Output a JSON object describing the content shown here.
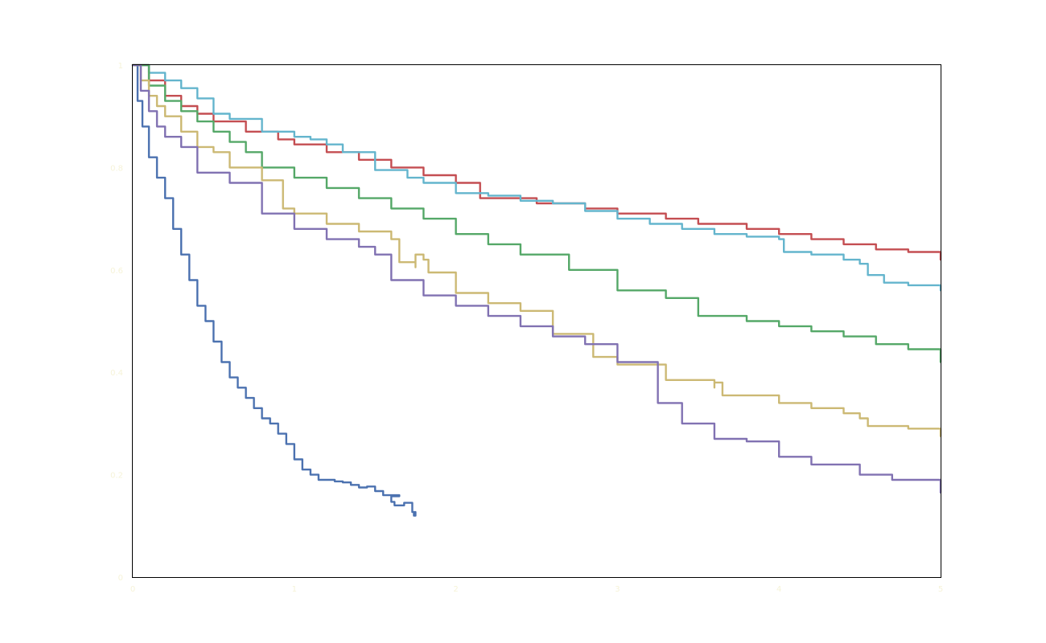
{
  "chart_data": {
    "type": "line",
    "title": "",
    "xlabel": "",
    "ylabel": "",
    "xlim": [
      0,
      5
    ],
    "ylim": [
      0,
      1
    ],
    "x_ticks": [
      "0",
      "1",
      "2",
      "3",
      "4",
      "5"
    ],
    "y_ticks": [
      "0",
      "0.2",
      "0.4",
      "0.6",
      "0.8",
      "1"
    ],
    "grid": false,
    "legend": "none",
    "series": [
      {
        "color": "#4c72b0",
        "points": [
          [
            0,
            1.0
          ],
          [
            0.03,
            0.93
          ],
          [
            0.06,
            0.88
          ],
          [
            0.1,
            0.82
          ],
          [
            0.15,
            0.78
          ],
          [
            0.2,
            0.74
          ],
          [
            0.25,
            0.68
          ],
          [
            0.3,
            0.63
          ],
          [
            0.35,
            0.58
          ],
          [
            0.4,
            0.53
          ],
          [
            0.45,
            0.5
          ],
          [
            0.5,
            0.46
          ],
          [
            0.55,
            0.42
          ],
          [
            0.6,
            0.39
          ],
          [
            0.65,
            0.37
          ],
          [
            0.7,
            0.35
          ],
          [
            0.75,
            0.33
          ],
          [
            0.8,
            0.31
          ],
          [
            0.85,
            0.3
          ],
          [
            0.9,
            0.28
          ],
          [
            0.95,
            0.26
          ],
          [
            1.0,
            0.23
          ],
          [
            1.05,
            0.21
          ],
          [
            1.1,
            0.2
          ],
          [
            1.15,
            0.19
          ],
          [
            1.2,
            0.19
          ],
          [
            1.25,
            0.187
          ],
          [
            1.3,
            0.185
          ],
          [
            1.35,
            0.18
          ],
          [
            1.4,
            0.175
          ],
          [
            1.45,
            0.177
          ],
          [
            1.5,
            0.168
          ],
          [
            1.55,
            0.16
          ],
          [
            1.6,
            0.158
          ],
          [
            1.65,
            0.16
          ],
          [
            1.6,
            0.147
          ],
          [
            1.62,
            0.14
          ],
          [
            1.68,
            0.145
          ],
          [
            1.73,
            0.127
          ],
          [
            1.75,
            0.12
          ],
          [
            1.74,
            0.124
          ]
        ]
      },
      {
        "color": "#c44e52",
        "points": [
          [
            0,
            1.0
          ],
          [
            0.1,
            0.97
          ],
          [
            0.2,
            0.94
          ],
          [
            0.3,
            0.92
          ],
          [
            0.4,
            0.905
          ],
          [
            0.5,
            0.89
          ],
          [
            0.7,
            0.87
          ],
          [
            0.9,
            0.855
          ],
          [
            1.0,
            0.845
          ],
          [
            1.2,
            0.83
          ],
          [
            1.4,
            0.815
          ],
          [
            1.6,
            0.8
          ],
          [
            1.8,
            0.785
          ],
          [
            2.0,
            0.77
          ],
          [
            2.15,
            0.76
          ],
          [
            2.15,
            0.74
          ],
          [
            2.5,
            0.73
          ],
          [
            2.8,
            0.72
          ],
          [
            3.0,
            0.71
          ],
          [
            3.3,
            0.7
          ],
          [
            3.5,
            0.69
          ],
          [
            3.8,
            0.68
          ],
          [
            4.0,
            0.67
          ],
          [
            4.2,
            0.66
          ],
          [
            4.4,
            0.65
          ],
          [
            4.6,
            0.64
          ],
          [
            4.8,
            0.635
          ],
          [
            5.0,
            0.62
          ]
        ]
      },
      {
        "color": "#64b5cd",
        "points": [
          [
            0,
            1.0
          ],
          [
            0.1,
            0.985
          ],
          [
            0.2,
            0.97
          ],
          [
            0.3,
            0.955
          ],
          [
            0.4,
            0.935
          ],
          [
            0.5,
            0.905
          ],
          [
            0.6,
            0.895
          ],
          [
            0.8,
            0.87
          ],
          [
            1.0,
            0.86
          ],
          [
            1.1,
            0.855
          ],
          [
            1.2,
            0.845
          ],
          [
            1.3,
            0.83
          ],
          [
            1.5,
            0.795
          ],
          [
            1.7,
            0.78
          ],
          [
            1.8,
            0.77
          ],
          [
            2.0,
            0.75
          ],
          [
            2.2,
            0.745
          ],
          [
            2.4,
            0.735
          ],
          [
            2.6,
            0.73
          ],
          [
            2.8,
            0.715
          ],
          [
            3.0,
            0.7
          ],
          [
            3.2,
            0.69
          ],
          [
            3.4,
            0.68
          ],
          [
            3.6,
            0.67
          ],
          [
            3.8,
            0.665
          ],
          [
            4.0,
            0.66
          ],
          [
            4.03,
            0.635
          ],
          [
            4.2,
            0.63
          ],
          [
            4.4,
            0.62
          ],
          [
            4.5,
            0.612
          ],
          [
            4.55,
            0.59
          ],
          [
            4.65,
            0.575
          ],
          [
            4.8,
            0.57
          ],
          [
            5.0,
            0.56
          ]
        ]
      },
      {
        "color": "#55a868",
        "points": [
          [
            0,
            1.0
          ],
          [
            0.1,
            0.96
          ],
          [
            0.2,
            0.93
          ],
          [
            0.3,
            0.91
          ],
          [
            0.4,
            0.89
          ],
          [
            0.5,
            0.87
          ],
          [
            0.6,
            0.85
          ],
          [
            0.7,
            0.83
          ],
          [
            0.8,
            0.8
          ],
          [
            1.0,
            0.78
          ],
          [
            1.2,
            0.76
          ],
          [
            1.4,
            0.74
          ],
          [
            1.6,
            0.72
          ],
          [
            1.8,
            0.7
          ],
          [
            2.0,
            0.67
          ],
          [
            2.2,
            0.65
          ],
          [
            2.4,
            0.63
          ],
          [
            2.7,
            0.61
          ],
          [
            2.7,
            0.6
          ],
          [
            3.0,
            0.58
          ],
          [
            3.0,
            0.56
          ],
          [
            3.3,
            0.545
          ],
          [
            3.5,
            0.53
          ],
          [
            3.5,
            0.51
          ],
          [
            3.8,
            0.5
          ],
          [
            4.0,
            0.49
          ],
          [
            4.2,
            0.48
          ],
          [
            4.4,
            0.47
          ],
          [
            4.6,
            0.455
          ],
          [
            4.8,
            0.445
          ],
          [
            5.0,
            0.42
          ]
        ]
      },
      {
        "color": "#ccb974",
        "points": [
          [
            0,
            1.0
          ],
          [
            0.05,
            0.97
          ],
          [
            0.1,
            0.94
          ],
          [
            0.15,
            0.92
          ],
          [
            0.2,
            0.9
          ],
          [
            0.3,
            0.87
          ],
          [
            0.4,
            0.84
          ],
          [
            0.5,
            0.83
          ],
          [
            0.6,
            0.8
          ],
          [
            0.8,
            0.775
          ],
          [
            0.93,
            0.755
          ],
          [
            0.93,
            0.72
          ],
          [
            1.0,
            0.71
          ],
          [
            1.2,
            0.69
          ],
          [
            1.4,
            0.675
          ],
          [
            1.6,
            0.66
          ],
          [
            1.65,
            0.65
          ],
          [
            1.65,
            0.615
          ],
          [
            1.75,
            0.605
          ],
          [
            1.75,
            0.63
          ],
          [
            1.8,
            0.62
          ],
          [
            1.83,
            0.595
          ],
          [
            2.0,
            0.58
          ],
          [
            2.0,
            0.555
          ],
          [
            2.2,
            0.535
          ],
          [
            2.4,
            0.52
          ],
          [
            2.6,
            0.505
          ],
          [
            2.6,
            0.475
          ],
          [
            2.85,
            0.46
          ],
          [
            2.85,
            0.43
          ],
          [
            3.0,
            0.415
          ],
          [
            3.3,
            0.405
          ],
          [
            3.3,
            0.385
          ],
          [
            3.6,
            0.37
          ],
          [
            3.6,
            0.38
          ],
          [
            3.65,
            0.37
          ],
          [
            3.65,
            0.355
          ],
          [
            4.0,
            0.34
          ],
          [
            4.2,
            0.33
          ],
          [
            4.4,
            0.32
          ],
          [
            4.5,
            0.31
          ],
          [
            4.55,
            0.295
          ],
          [
            4.8,
            0.29
          ],
          [
            5.0,
            0.275
          ]
        ]
      },
      {
        "color": "#8172b2",
        "points": [
          [
            0,
            1.0
          ],
          [
            0.05,
            0.95
          ],
          [
            0.1,
            0.91
          ],
          [
            0.15,
            0.88
          ],
          [
            0.2,
            0.86
          ],
          [
            0.3,
            0.84
          ],
          [
            0.4,
            0.79
          ],
          [
            0.6,
            0.77
          ],
          [
            0.8,
            0.71
          ],
          [
            1.0,
            0.68
          ],
          [
            1.2,
            0.66
          ],
          [
            1.4,
            0.645
          ],
          [
            1.5,
            0.63
          ],
          [
            1.6,
            0.62
          ],
          [
            1.6,
            0.58
          ],
          [
            1.8,
            0.55
          ],
          [
            2.0,
            0.53
          ],
          [
            2.2,
            0.51
          ],
          [
            2.4,
            0.49
          ],
          [
            2.6,
            0.47
          ],
          [
            2.8,
            0.455
          ],
          [
            3.0,
            0.44
          ],
          [
            3.0,
            0.42
          ],
          [
            3.25,
            0.41
          ],
          [
            3.25,
            0.34
          ],
          [
            3.4,
            0.32
          ],
          [
            3.4,
            0.3
          ],
          [
            3.6,
            0.27
          ],
          [
            3.8,
            0.265
          ],
          [
            4.0,
            0.25
          ],
          [
            4.0,
            0.235
          ],
          [
            4.2,
            0.22
          ],
          [
            4.5,
            0.21
          ],
          [
            4.5,
            0.2
          ],
          [
            4.7,
            0.19
          ],
          [
            5.0,
            0.18
          ],
          [
            5.0,
            0.165
          ]
        ]
      }
    ]
  }
}
